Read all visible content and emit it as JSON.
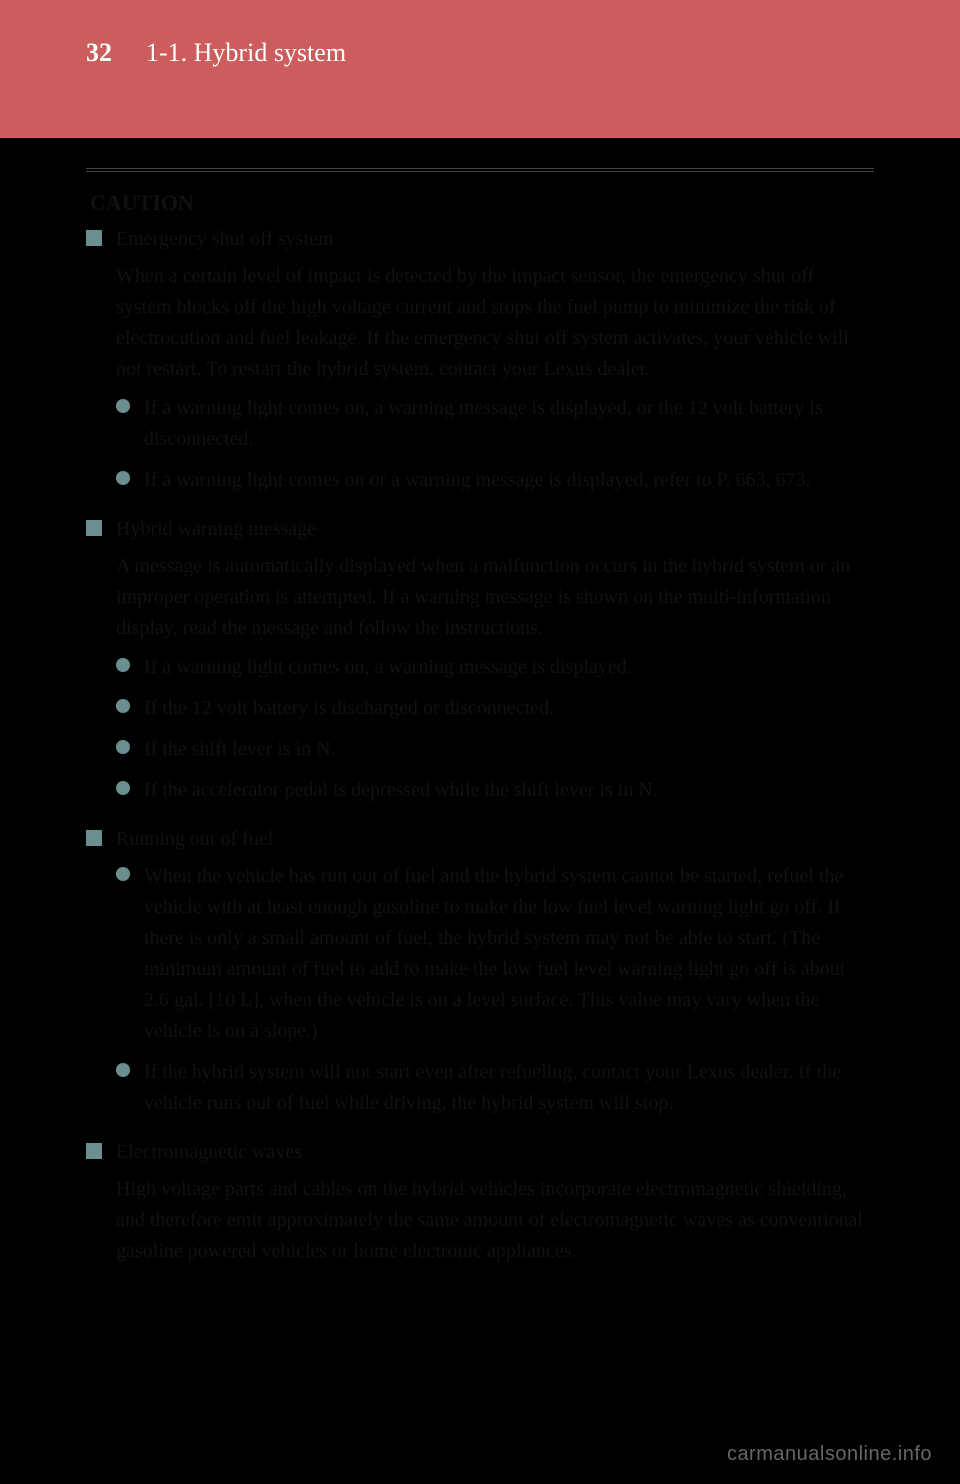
{
  "header": {
    "page_number": "32",
    "title": "1-1. Hybrid system"
  },
  "caution_label": "CAUTION",
  "sections": [
    {
      "title": "Emergency shut off system",
      "body": "When a certain level of impact is detected by the impact sensor, the emergency shut off system blocks off the high voltage current and stops the fuel pump to minimize the risk of electrocution and fuel leakage. If the emergency shut off system activates, your vehicle will not restart. To restart the hybrid system, contact your Lexus dealer.",
      "bullets": [
        "If a warning light comes on, a warning message is displayed, or the 12 volt battery is disconnected.",
        "If a warning light comes on or a warning message is displayed, refer to P. 663, 673."
      ]
    },
    {
      "title": "Hybrid warning message",
      "body": "A message is automatically displayed when a malfunction occurs in the hybrid system or an improper operation is attempted. If a warning message is shown on the multi-information display, read the message and follow the instructions.",
      "bullets": [
        "If a warning light comes on, a warning message is displayed.",
        "If the 12 volt battery is discharged or disconnected.",
        "If the shift lever is in N.",
        "If the accelerator pedal is depressed while the shift lever is in N."
      ]
    },
    {
      "title": "Running out of fuel",
      "body": "",
      "bullets": [
        "When the vehicle has run out of fuel and the hybrid system cannot be started, refuel the vehicle with at least enough gasoline to make the low fuel level warning light go off. If there is only a small amount of fuel, the hybrid system may not be able to start. (The minimum amount of fuel to add to make the low fuel level warning light go off is about 2.6 gal. [10 L], when the vehicle is on a level surface. This value may vary when the vehicle is on a slope.)",
        "If the hybrid system will not start even after refueling, contact your Lexus dealer. If the vehicle runs out of fuel while driving, the hybrid system will stop."
      ]
    },
    {
      "title": "Electromagnetic waves",
      "body": "High voltage parts and cables on the hybrid vehicles incorporate electromagnetic shielding, and therefore emit approximately the same amount of electromagnetic waves as conventional gasoline powered vehicles or home electronic appliances.",
      "bullets": []
    }
  ],
  "watermark": "carmanualsonline.info",
  "colors": {
    "header_bg": "#cd5c5c",
    "marker": "#6b8e8e",
    "page_bg": "#000000",
    "text": "#111111"
  }
}
